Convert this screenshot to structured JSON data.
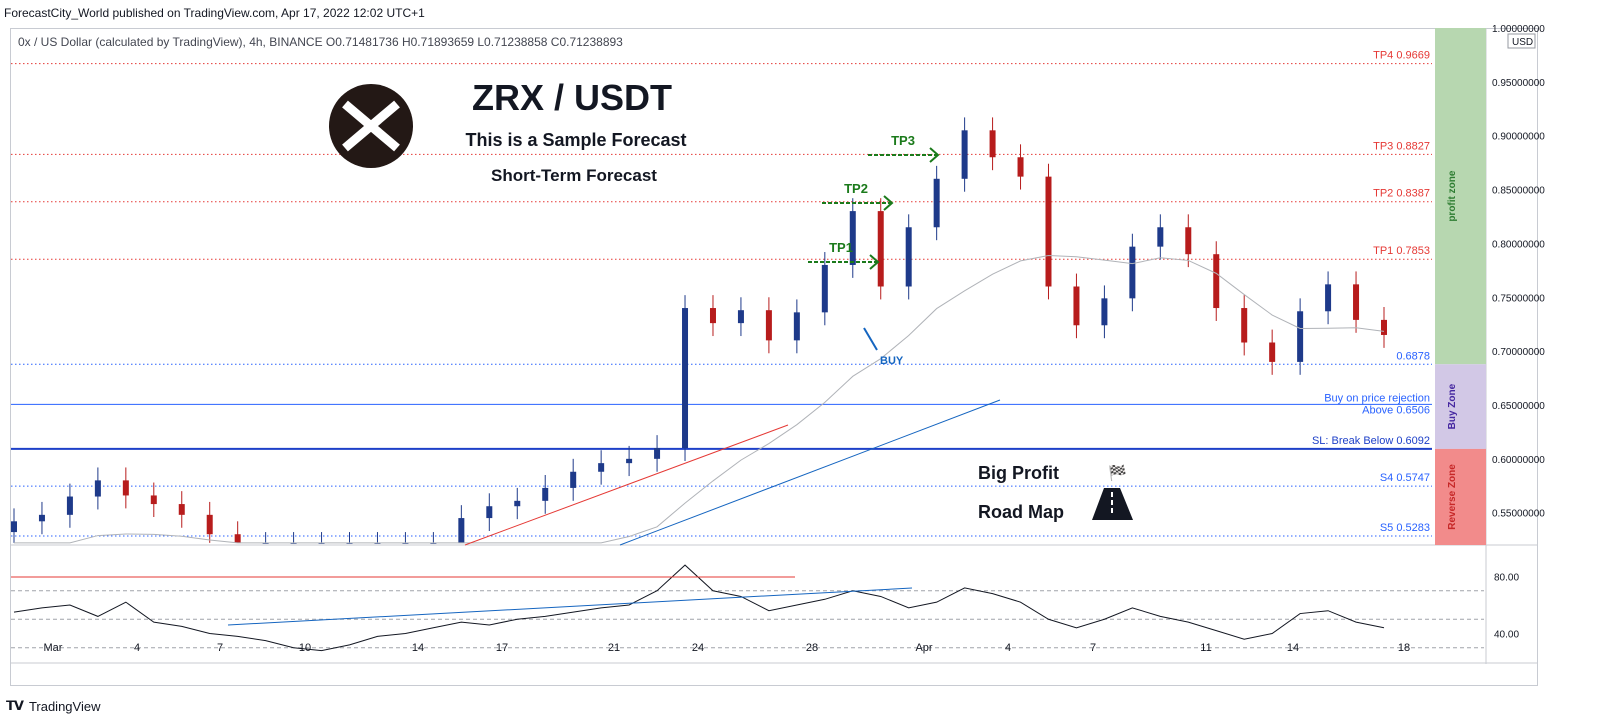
{
  "header": {
    "published": "ForecastCity_World published on TradingView.com, Apr 17, 2022 12:02 UTC+1",
    "symbol_info": "0x / US Dollar (calculated by TradingView), 4h, BINANCE  O0.71481736  H0.71893659  L0.71238858  C0.71238893"
  },
  "footer": {
    "logo_icon": "tradingview-logo-icon",
    "brand": "TradingView"
  },
  "chart_data": {
    "type": "line",
    "title": "ZRX / USDT",
    "subtitles": [
      "This is a Sample Forecast",
      "Short-Term Forecast"
    ],
    "currency": "USD",
    "y_scale": "linear",
    "ylim": [
      0.52,
      1.0
    ],
    "y_ticks": [
      "0.55000000",
      "0.60000000",
      "0.65000000",
      "0.70000000",
      "0.75000000",
      "0.80000000",
      "0.85000000",
      "0.90000000",
      "0.95000000",
      "1.00000000"
    ],
    "x_tick_labels": [
      "Mar",
      "4",
      "7",
      "10",
      "14",
      "17",
      "21",
      "24",
      "28",
      "Apr",
      "4",
      "7",
      "11",
      "14",
      "18"
    ],
    "levels": [
      {
        "label": "TP4 0.9669",
        "value": 0.9669,
        "color": "#e53935",
        "style": "dotted"
      },
      {
        "label": "TP3 0.8827",
        "value": 0.8827,
        "color": "#e53935",
        "style": "dotted"
      },
      {
        "label": "TP2 0.8387",
        "value": 0.8387,
        "color": "#e53935",
        "style": "dotted"
      },
      {
        "label": "TP1 0.7853",
        "value": 0.7853,
        "color": "#e53935",
        "style": "dotted"
      },
      {
        "label": "0.6878",
        "value": 0.6878,
        "color": "#2962ff",
        "style": "dotted"
      },
      {
        "label": "Buy on price rejection",
        "label2": "Above 0.6506",
        "value": 0.6506,
        "color": "#2962ff",
        "style": "solid"
      },
      {
        "label": "SL: Break Below 0.6092",
        "value": 0.6092,
        "color": "#1e40c8",
        "style": "solid-thick"
      },
      {
        "label": "S4 0.5747",
        "value": 0.5747,
        "color": "#2962ff",
        "style": "dotted"
      },
      {
        "label": "S5 0.5283",
        "value": 0.5283,
        "color": "#2962ff",
        "style": "dotted"
      }
    ],
    "zones": [
      {
        "label": "profit zone",
        "from": 0.6878,
        "to": 1.0,
        "color": "#b7d7b0",
        "text_color": "#2e7d32"
      },
      {
        "label": "Buy Zone",
        "from": 0.6092,
        "to": 0.6878,
        "color": "#d2c8e6",
        "text_color": "#4527a0"
      },
      {
        "label": "Reverse Zone",
        "from": 0.52,
        "to": 0.6092,
        "color": "#f28b8b",
        "text_color": "#c62828"
      }
    ],
    "annotations": {
      "tp_arrows": [
        "TP1",
        "TP2",
        "TP3"
      ],
      "buy": "BUY",
      "road_map": [
        "Big Profit",
        "Road Map"
      ],
      "flag_icon": "checkered-flag-icon",
      "road_icon": "road-icon",
      "logo_icon": "zrx-logo-icon"
    },
    "price_series": {
      "color_up": "#1e3a8a",
      "color_down": "#b71c1c",
      "x": [
        0,
        1,
        2,
        3,
        4,
        5,
        6,
        7,
        8,
        9,
        10,
        11,
        12,
        13,
        14,
        15,
        16,
        17,
        18,
        19,
        20,
        21,
        22,
        23,
        24,
        25,
        26,
        27,
        28,
        29,
        30,
        31,
        32,
        33,
        34,
        35,
        36,
        37,
        38,
        39,
        40,
        41,
        42,
        43,
        44,
        45,
        46,
        47,
        48,
        49
      ],
      "close": [
        0.542,
        0.548,
        0.565,
        0.58,
        0.566,
        0.558,
        0.548,
        0.53,
        0.52,
        0.52,
        0.52,
        0.52,
        0.52,
        0.52,
        0.52,
        0.52,
        0.545,
        0.556,
        0.561,
        0.573,
        0.588,
        0.596,
        0.6,
        0.61,
        0.74,
        0.726,
        0.738,
        0.71,
        0.736,
        0.78,
        0.83,
        0.76,
        0.815,
        0.86,
        0.905,
        0.88,
        0.862,
        0.76,
        0.724,
        0.749,
        0.797,
        0.815,
        0.79,
        0.74,
        0.708,
        0.69,
        0.737,
        0.762,
        0.729,
        0.715
      ]
    },
    "sma_line": {
      "color": "#b0b3b8"
    },
    "trendlines": [
      {
        "color": "#e53935"
      },
      {
        "color": "#1565c0"
      }
    ],
    "oscillator": {
      "y_ticks": [
        "80.00",
        "40.00"
      ],
      "ylim": [
        20,
        100
      ],
      "guide_levels": [
        70,
        50,
        30
      ],
      "values": [
        55,
        58,
        60,
        52,
        62,
        48,
        45,
        40,
        38,
        35,
        30,
        28,
        32,
        38,
        40,
        44,
        48,
        46,
        50,
        52,
        55,
        58,
        60,
        70,
        88,
        70,
        66,
        56,
        60,
        64,
        70,
        66,
        58,
        62,
        72,
        68,
        62,
        50,
        44,
        50,
        58,
        52,
        48,
        42,
        36,
        40,
        54,
        56,
        48,
        44
      ]
    }
  }
}
